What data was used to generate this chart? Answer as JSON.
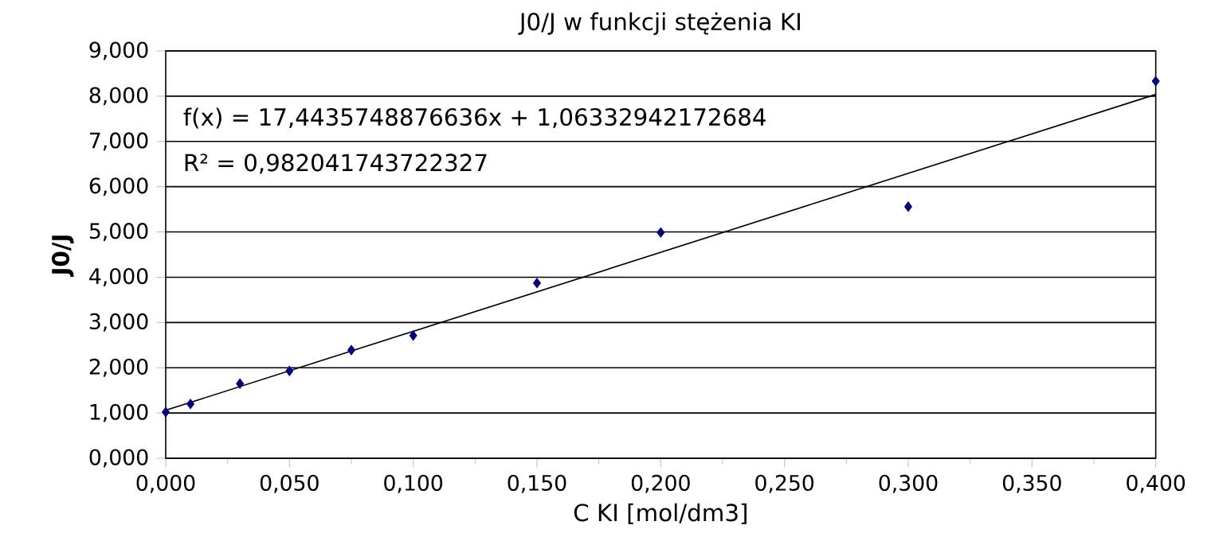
{
  "chart_data": {
    "type": "scatter",
    "title": "J0/J w funkcji stężenia KI",
    "xlabel": "C KI [mol/dm3]",
    "ylabel": "J0/J",
    "x": [
      0,
      0.01,
      0.03,
      0.05,
      0.075,
      0.1,
      0.15,
      0.2,
      0.3,
      0.4
    ],
    "series": [
      {
        "color": "#000080",
        "marker": "diamond",
        "values": [
          1.02,
          1.2,
          1.65,
          1.93,
          2.39,
          2.71,
          3.87,
          4.99,
          5.56,
          8.33
        ]
      },
      {
        "type": "line",
        "color": "#000000",
        "x": [
          0,
          0.4
        ],
        "values": [
          1.06,
          8.04
        ]
      }
    ],
    "grid": "y",
    "xlim": [
      0,
      0.4
    ],
    "ylim": [
      0,
      9
    ],
    "xticks": [
      {
        "value": 0,
        "label": "0,000"
      },
      {
        "value": 0.05,
        "label": "0,050"
      },
      {
        "value": 0.1,
        "label": "0,100"
      },
      {
        "value": 0.15,
        "label": "0,150"
      },
      {
        "value": 0.2,
        "label": "0,200"
      },
      {
        "value": 0.25,
        "label": "0,250"
      },
      {
        "value": 0.3,
        "label": "0,300"
      },
      {
        "value": 0.35,
        "label": "0,350"
      },
      {
        "value": 0.4,
        "label": "0,400"
      }
    ],
    "yticks": [
      {
        "value": 0,
        "label": "0,000"
      },
      {
        "value": 1,
        "label": "1,000"
      },
      {
        "value": 2,
        "label": "2,000"
      },
      {
        "value": 3,
        "label": "3,000"
      },
      {
        "value": 4,
        "label": "4,000"
      },
      {
        "value": 5,
        "label": "5,000"
      },
      {
        "value": 6,
        "label": "6,000"
      },
      {
        "value": 7,
        "label": "7,000"
      },
      {
        "value": 8,
        "label": "8,000"
      },
      {
        "value": 9,
        "label": "9,000"
      }
    ],
    "annotations": [
      "f(x) = 17,4435748876636x + 1,06332942172684",
      "R² = 0,982041743722327"
    ]
  }
}
